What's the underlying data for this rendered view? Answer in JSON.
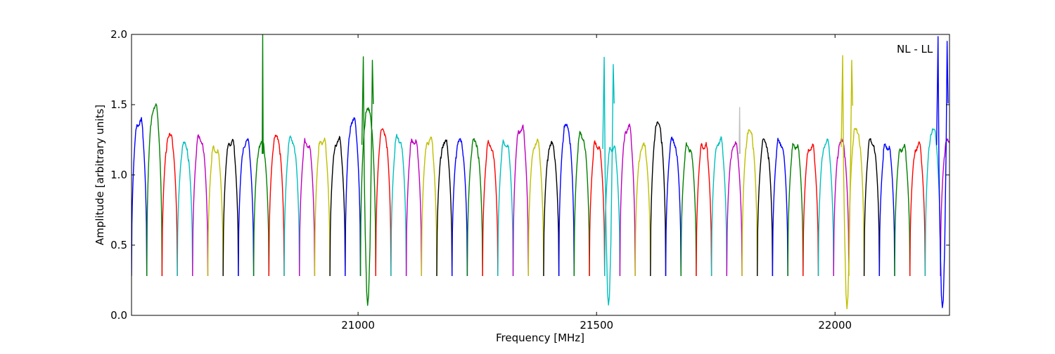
{
  "chart_data": {
    "type": "line",
    "title": "",
    "annotation": "NL - LL",
    "xlabel": "Frequency [MHz]",
    "ylabel": "Amplitude [arbitrary units]",
    "xlim": [
      20525,
      22240
    ],
    "ylim": [
      0,
      2.0
    ],
    "x_ticks": [
      21000,
      21500,
      22000
    ],
    "x_tick_labels": [
      "21000",
      "21500",
      "22000"
    ],
    "y_ticks": [
      0.0,
      0.5,
      1.0,
      1.5,
      2.0
    ],
    "y_tick_labels": [
      "0.0",
      "0.5",
      "1.0",
      "1.5",
      "2.0"
    ],
    "grid": false,
    "legend": "none",
    "color_cycle": [
      "#0000ff",
      "#008000",
      "#ff0000",
      "#00bfbf",
      "#bf00bf",
      "#bfbf00",
      "#000000"
    ],
    "band_width_mhz": 32,
    "band_spacing_mhz": 32,
    "first_band_start_mhz": 20525,
    "band_min_amplitude": 0.28,
    "band_peak_amplitudes": [
      1.38,
      1.47,
      1.26,
      1.2,
      1.25,
      1.19,
      1.24,
      1.23,
      1.21,
      1.25,
      1.24,
      1.23,
      1.25,
      1.24,
      1.37,
      1.44,
      1.3,
      1.26,
      1.25,
      1.25,
      1.22,
      1.22,
      1.22,
      1.21,
      1.23,
      1.33,
      1.22,
      1.2,
      1.33,
      1.27,
      1.22,
      1.2,
      1.33,
      1.19,
      1.34,
      1.23,
      1.2,
      1.22,
      1.24,
      1.2,
      1.29,
      1.22,
      1.23,
      1.22,
      1.2,
      1.22,
      1.22,
      1.3,
      1.23,
      1.21,
      1.2,
      1.2,
      1.3,
      1.22
    ],
    "strong_features": [
      {
        "x_mhz": 21020,
        "min": 0.08,
        "max": 1.85,
        "color": "#008000"
      },
      {
        "x_mhz": 21525,
        "min": 0.07,
        "max": 1.85,
        "color": "#00bfbf"
      },
      {
        "x_mhz": 22025,
        "min": 0.05,
        "max": 1.85,
        "color": "#bfbf00"
      },
      {
        "x_mhz": 22225,
        "min": 0.04,
        "max": 2.0,
        "color": "#0000ff"
      }
    ],
    "spikes": [
      {
        "x_mhz": 20800,
        "max": 2.0,
        "color": "#008000"
      },
      {
        "x_mhz": 21800,
        "max": 1.48,
        "color": "#c0c0c0"
      }
    ]
  }
}
